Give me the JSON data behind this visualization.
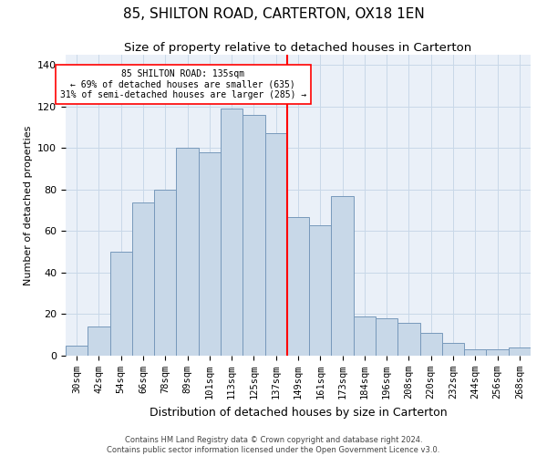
{
  "title1": "85, SHILTON ROAD, CARTERTON, OX18 1EN",
  "title2": "Size of property relative to detached houses in Carterton",
  "xlabel": "Distribution of detached houses by size in Carterton",
  "ylabel": "Number of detached properties",
  "footer1": "Contains HM Land Registry data © Crown copyright and database right 2024.",
  "footer2": "Contains public sector information licensed under the Open Government Licence v3.0.",
  "annotation_line1": "85 SHILTON ROAD: 135sqm",
  "annotation_line2": "← 69% of detached houses are smaller (635)",
  "annotation_line3": "31% of semi-detached houses are larger (285) →",
  "bar_color": "#c8d8e8",
  "bar_edge_color": "#7799bb",
  "vline_color": "red",
  "categories": [
    "30sqm",
    "42sqm",
    "54sqm",
    "66sqm",
    "78sqm",
    "89sqm",
    "101sqm",
    "113sqm",
    "125sqm",
    "137sqm",
    "149sqm",
    "161sqm",
    "173sqm",
    "184sqm",
    "196sqm",
    "208sqm",
    "220sqm",
    "232sqm",
    "244sqm",
    "256sqm",
    "268sqm"
  ],
  "values": [
    5,
    14,
    50,
    74,
    80,
    100,
    98,
    119,
    116,
    107,
    67,
    63,
    77,
    19,
    18,
    16,
    11,
    6,
    3,
    3,
    4
  ],
  "ylim": [
    0,
    145
  ],
  "grid_color": "#c8d8e8",
  "bg_color": "#eaf0f8",
  "title1_fontsize": 11,
  "title2_fontsize": 9.5,
  "xlabel_fontsize": 9,
  "ylabel_fontsize": 8,
  "tick_fontsize": 7.5,
  "annotation_fontsize": 7,
  "footer_fontsize": 6
}
